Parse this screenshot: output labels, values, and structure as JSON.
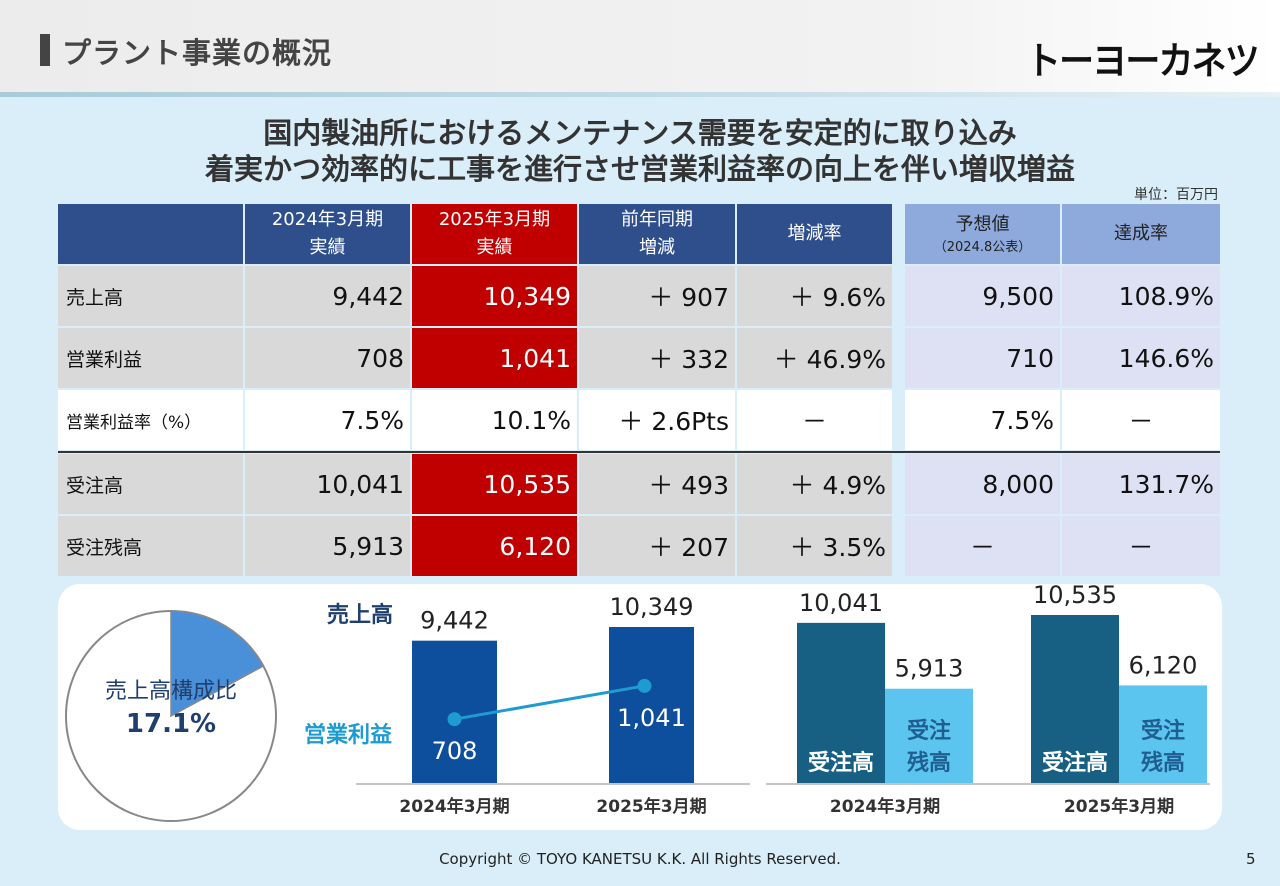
{
  "page_title": "プラント事業の概況",
  "logo_text": "トーヨーカネツ",
  "headline": [
    "国内製油所におけるメンテナンス需要を安定的に取り込み",
    "着実かつ効率的に工事を進行させ営業利益率の向上を伴い増収増益"
  ],
  "unit": "単位：百万円",
  "table": {
    "headers": {
      "fy2024": [
        "2024年3月期",
        "実績"
      ],
      "fy2025": [
        "2025年3月期",
        "実績"
      ],
      "yoy": [
        "前年同期",
        "増減"
      ],
      "rate": "増減率",
      "forecast": [
        "予想値",
        "（2024.8公表）"
      ],
      "achievement": "達成率"
    },
    "rows": [
      {
        "label": "売上高",
        "fy2024": "9,442",
        "fy2025": "10,349",
        "yoy": "＋ 907",
        "rate": "＋ 9.6%",
        "forecast": "9,500",
        "achievement": "108.9%"
      },
      {
        "label": "営業利益",
        "fy2024": "708",
        "fy2025": "1,041",
        "yoy": "＋ 332",
        "rate": "＋ 46.9%",
        "forecast": "710",
        "achievement": "146.6%"
      },
      {
        "label": "営業利益率（%）",
        "fy2024": "7.5%",
        "fy2025": "10.1%",
        "yoy": "＋ 2.6Pts",
        "rate": "－",
        "forecast": "7.5%",
        "achievement": "－"
      },
      {
        "label": "受注高",
        "fy2024": "10,041",
        "fy2025": "10,535",
        "yoy": "＋ 493",
        "rate": "＋ 4.9%",
        "forecast": "8,000",
        "achievement": "131.7%"
      },
      {
        "label": "受注残高",
        "fy2024": "5,913",
        "fy2025": "6,120",
        "yoy": "＋ 207",
        "rate": "＋ 3.5%",
        "forecast": "－",
        "achievement": "－"
      }
    ]
  },
  "pie": {
    "label": "売上高構成比",
    "value_text": "17.1%",
    "share": 0.171,
    "color": "#4a90d9"
  },
  "chart_data": [
    {
      "type": "bar",
      "categories": [
        "2024年3月期",
        "2025年3月期"
      ],
      "series": [
        {
          "name": "売上高",
          "values": [
            9442,
            10349
          ],
          "labels": [
            "9,442",
            "10,349"
          ],
          "color": "#0d4f9c"
        },
        {
          "name": "営業利益",
          "values": [
            708,
            1041
          ],
          "labels": [
            "708",
            "1,041"
          ],
          "color": "#1e9bd0"
        }
      ]
    },
    {
      "type": "bar",
      "categories": [
        "2024年3月期",
        "2025年3月期"
      ],
      "series": [
        {
          "name": "受注高",
          "values": [
            10041,
            10535
          ],
          "labels": [
            "10,041",
            "10,535"
          ],
          "color": "#185f84"
        },
        {
          "name": "受注残高",
          "values": [
            5913,
            6120
          ],
          "labels": [
            "5,913",
            "6,120"
          ],
          "color": "#5bc5f0"
        }
      ],
      "series_labels": [
        "受注高",
        "受注\n残高"
      ]
    }
  ],
  "footer": "Copyright © TOYO KANETSU K.K. All Rights Reserved.",
  "page_number": "5"
}
